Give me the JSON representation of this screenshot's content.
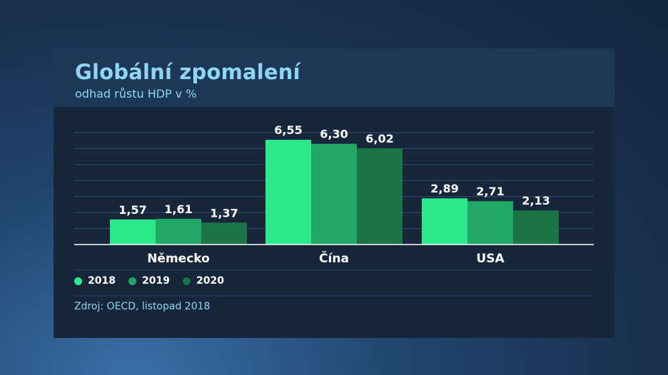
{
  "title": "Globální zpomalení",
  "subtitle": "odhad růstu HDP v %",
  "source": "Zdroj: OECD, listopad 2018",
  "colors": {
    "2018": "#2ee88c",
    "2019": "#22a866",
    "2020": "#1a7446"
  },
  "chart_data": {
    "type": "bar",
    "title": "Globální zpomalení",
    "subtitle": "odhad růstu HDP v %",
    "categories": [
      "Německo",
      "Čína",
      "USA"
    ],
    "series": [
      {
        "name": "2018",
        "values": [
          1.57,
          6.55,
          2.89
        ],
        "labels": [
          "1,57",
          "6,55",
          "2,89"
        ]
      },
      {
        "name": "2019",
        "values": [
          1.61,
          6.3,
          2.71
        ],
        "labels": [
          "1,61",
          "6,30",
          "2,71"
        ]
      },
      {
        "name": "2020",
        "values": [
          1.37,
          6.02,
          2.13
        ],
        "labels": [
          "1,37",
          "6,02",
          "2,13"
        ]
      }
    ],
    "ylim": [
      0,
      7
    ],
    "grid": true,
    "legend": "bottom-left"
  }
}
